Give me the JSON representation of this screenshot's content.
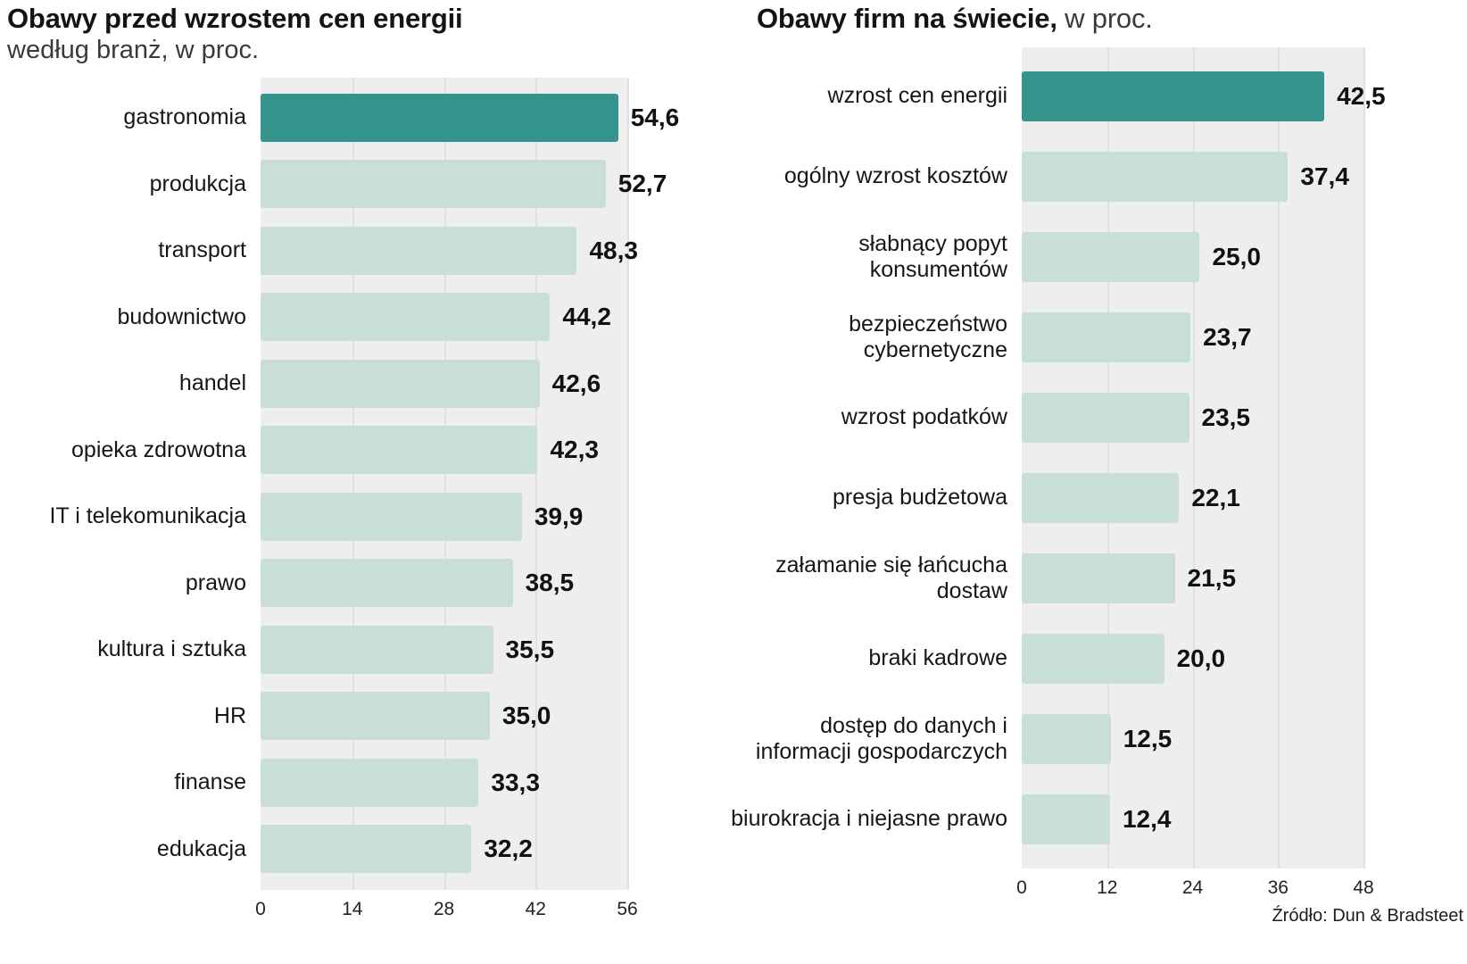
{
  "colors": {
    "accent": "#35948c",
    "bar": "#c9ded8",
    "panel": "#eeeeee",
    "grid": "#e0e0e0",
    "text": "#161616"
  },
  "source": "Źródło: Dun & Bradsteet",
  "chart_data": [
    {
      "type": "bar",
      "orientation": "horizontal",
      "title": "Obawy przed wzrostem cen energii",
      "subtitle": "według branż, w proc.",
      "categories": [
        "gastronomia",
        "produkcja",
        "transport",
        "budownictwo",
        "handel",
        "opieka zdrowotna",
        "IT i telekomunikacja",
        "prawo",
        "kultura i sztuka",
        "HR",
        "finanse",
        "edukacja"
      ],
      "values": [
        54.6,
        52.7,
        48.3,
        44.2,
        42.6,
        42.3,
        39.9,
        38.5,
        35.5,
        35.0,
        33.3,
        32.2
      ],
      "value_labels": [
        "54,6",
        "52,7",
        "48,3",
        "44,2",
        "42,6",
        "42,3",
        "39,9",
        "38,5",
        "35,5",
        "35,0",
        "33,3",
        "32,2"
      ],
      "xticks": [
        0,
        14,
        28,
        42,
        56
      ],
      "xmax": 56,
      "highlight_index": 0,
      "legend": "none",
      "grid": "vertical"
    },
    {
      "type": "bar",
      "orientation": "horizontal",
      "title": "Obawy firm na świecie,",
      "subtitle": "w proc.",
      "categories": [
        "wzrost cen energii",
        "ogólny wzrost kosztów",
        "słabnący popyt konsumentów",
        "bezpieczeństwo cybernetyczne",
        "wzrost podatków",
        "presja budżetowa",
        "załamanie się łańcucha dostaw",
        "braki kadrowe",
        "dostęp do danych i informacji gospodarczych",
        "biurokracja i niejasne prawo"
      ],
      "values": [
        42.5,
        37.4,
        25.0,
        23.7,
        23.5,
        22.1,
        21.5,
        20.0,
        12.5,
        12.4
      ],
      "value_labels": [
        "42,5",
        "37,4",
        "25,0",
        "23,7",
        "23,5",
        "22,1",
        "21,5",
        "20,0",
        "12,5",
        "12,4"
      ],
      "xticks": [
        0,
        12,
        24,
        36,
        48
      ],
      "xmax": 48,
      "highlight_index": 0,
      "legend": "none",
      "grid": "vertical"
    }
  ]
}
